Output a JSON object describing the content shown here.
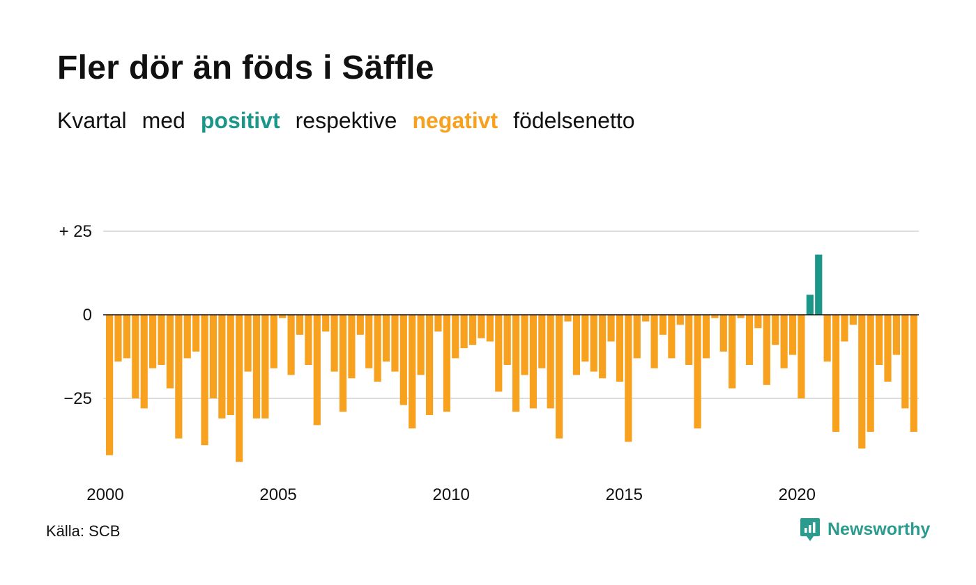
{
  "title": "Fler dör än föds i Säffle",
  "subtitle": {
    "w1": "Kvartal",
    "w2": "med",
    "positive": "positivt",
    "w3": "respektive",
    "negative": "negativt",
    "w4": "födelsenetto"
  },
  "colors": {
    "positive": "#1b978a",
    "negative": "#f7a11f",
    "grid": "#dddddd",
    "baseline": "#111111",
    "brand": "#2b9b8d"
  },
  "chart_data": {
    "type": "bar",
    "x_start_year": 2000,
    "periods_per_year": 4,
    "ylim": [
      -46,
      27
    ],
    "y_ticks": [
      {
        "value": 25,
        "label": "+ 25"
      },
      {
        "value": 0,
        "label": "0"
      },
      {
        "value": -25,
        "label": "−25"
      }
    ],
    "x_ticks": [
      {
        "year": 2000,
        "label": "2000"
      },
      {
        "year": 2005,
        "label": "2005"
      },
      {
        "year": 2010,
        "label": "2010"
      },
      {
        "year": 2015,
        "label": "2015"
      },
      {
        "year": 2020,
        "label": "2020"
      }
    ],
    "grid": true,
    "values": [
      -42,
      -14,
      -13,
      -25,
      -28,
      -16,
      -15,
      -22,
      -37,
      -13,
      -11,
      -39,
      -25,
      -31,
      -30,
      -44,
      -17,
      -31,
      -31,
      -16,
      -1,
      -18,
      -6,
      -15,
      -33,
      -5,
      -17,
      -29,
      -19,
      -6,
      -16,
      -20,
      -14,
      -17,
      -27,
      -34,
      -18,
      -30,
      -5,
      -29,
      -13,
      -10,
      -9,
      -7,
      -8,
      -23,
      -15,
      -29,
      -18,
      -28,
      -16,
      -28,
      -37,
      -2,
      -18,
      -14,
      -17,
      -19,
      -8,
      -20,
      -38,
      -13,
      -2,
      -16,
      -6,
      -13,
      -3,
      -15,
      -34,
      -13,
      -1,
      -11,
      -22,
      -1,
      -15,
      -4,
      -21,
      -9,
      -16,
      -12,
      -25,
      6,
      18,
      -14,
      -35,
      -8,
      -3,
      -40,
      -35,
      -15,
      -20,
      -12,
      -28,
      -35
    ]
  },
  "source": "Källa: SCB",
  "brand": {
    "name": "Newsworthy",
    "icon": "newsworthy-logo-icon"
  }
}
